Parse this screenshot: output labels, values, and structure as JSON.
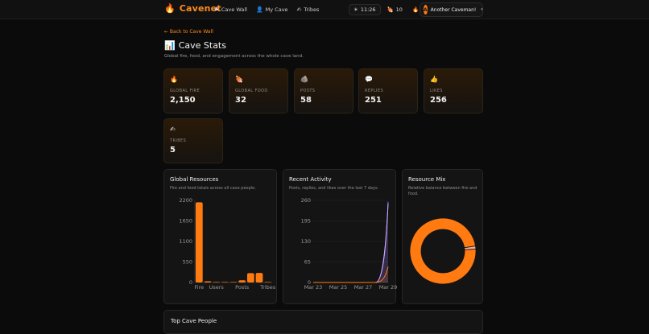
{
  "header": {
    "brand": "Cavenet",
    "nav": [
      {
        "icon": "⛰",
        "label": "Cave Wall"
      },
      {
        "icon": "👤",
        "label": "My Cave"
      },
      {
        "icon": "✍",
        "label": "Tribes"
      }
    ],
    "time": "11:26",
    "food_count": "10",
    "fire_count": "0",
    "user_initial": "A",
    "user_name": "Another Caveman!"
  },
  "page": {
    "back_label": "← Back to Cave Wall",
    "title": "Cave Stats",
    "subtitle": "Global fire, food, and engagement across the whole cave land."
  },
  "stats": [
    {
      "icon": "🔥",
      "label": "GLOBAL FIRE",
      "value": "2,150"
    },
    {
      "icon": "🍖",
      "label": "GLOBAL FOOD",
      "value": "32"
    },
    {
      "icon": "🪨",
      "label": "POSTS",
      "value": "58"
    },
    {
      "icon": "💬",
      "label": "REPLIES",
      "value": "251"
    },
    {
      "icon": "👍",
      "label": "LIKES",
      "value": "256"
    },
    {
      "icon": "✍",
      "label": "TRIBES",
      "value": "5"
    }
  ],
  "panels": {
    "resources": {
      "title": "Global Resources",
      "subtitle": "Fire and food totals across all cave people."
    },
    "activity": {
      "title": "Recent Activity",
      "subtitle": "Posts, replies, and likes over the last 7 days."
    },
    "mix": {
      "title": "Resource Mix",
      "subtitle": "Relative balance between fire and food."
    }
  },
  "chart_data": [
    {
      "type": "bar",
      "categories": [
        "Fire",
        "",
        "Users",
        "",
        "",
        "Posts",
        "",
        "",
        "Tribes"
      ],
      "values": [
        2150,
        32,
        12,
        4,
        8,
        58,
        251,
        256,
        5
      ],
      "ylim": [
        0,
        2200
      ],
      "yticks": [
        "0",
        "550",
        "1100",
        "1650",
        "2200"
      ],
      "color": "#ff7a10"
    },
    {
      "type": "line",
      "x": [
        "Mar 23",
        "Mar 24",
        "Mar 25",
        "Mar 26",
        "Mar 27",
        "Mar 28",
        "Mar 29"
      ],
      "xticks": [
        "Mar 23",
        "Mar 25",
        "Mar 27",
        "Mar 29"
      ],
      "ylim": [
        0,
        260
      ],
      "yticks": [
        "0",
        "65",
        "130",
        "195",
        "260"
      ],
      "series": [
        {
          "values": [
            0,
            0,
            0,
            0,
            0,
            0,
            256
          ],
          "color": "#8b5cf6"
        },
        {
          "values": [
            0,
            0,
            0,
            0,
            0,
            0,
            251
          ],
          "color": "#c9a9ff"
        },
        {
          "values": [
            0,
            0,
            0,
            0,
            0,
            0,
            50
          ],
          "color": "#ff7a10"
        }
      ]
    },
    {
      "type": "pie",
      "categories": [
        "Fire",
        "Food"
      ],
      "values": [
        2150,
        32
      ],
      "colors": [
        "#ff7a10",
        "#f5a9a0"
      ]
    }
  ]
}
